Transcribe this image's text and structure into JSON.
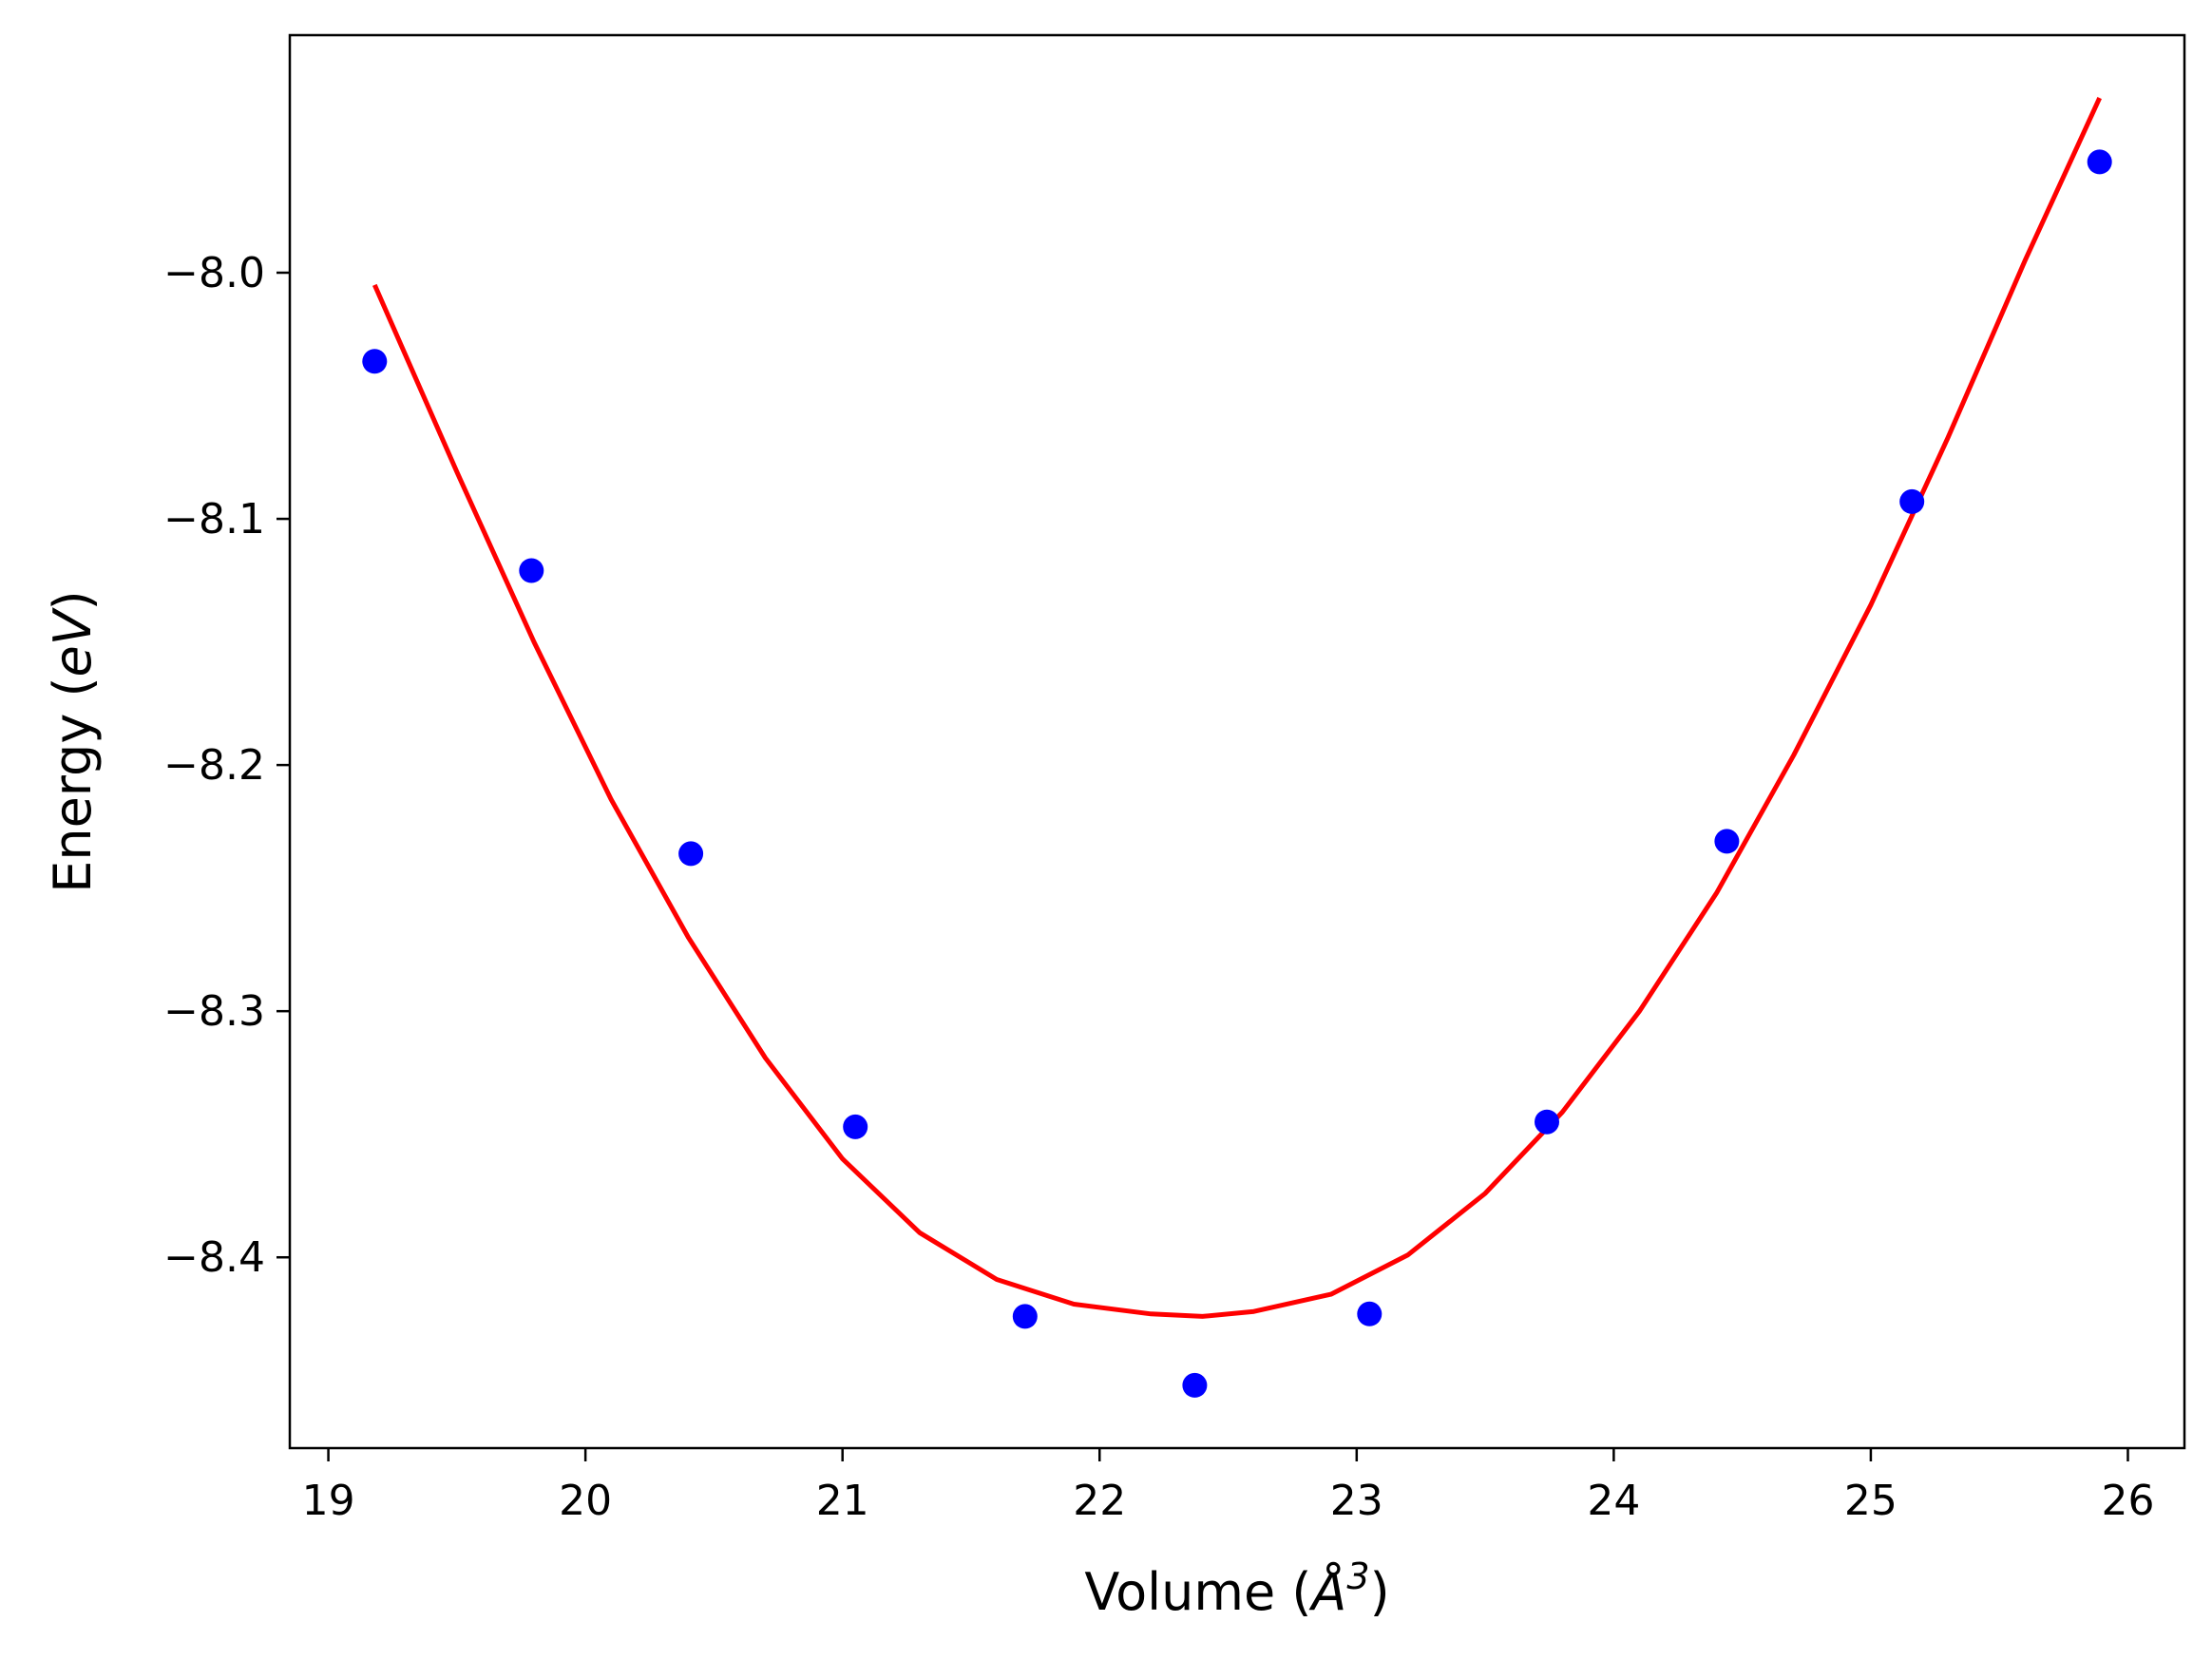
{
  "chart_data": {
    "type": "scatter",
    "xlabel": "Volume",
    "xlabel_unit_symbol": "Å",
    "xlabel_unit_exponent": "3",
    "ylabel": "Energy",
    "ylabel_unit": "eV",
    "xlim": [
      18.85,
      26.22
    ],
    "ylim": [
      -8.4775,
      -7.9035
    ],
    "x_ticks": [
      19,
      20,
      21,
      22,
      23,
      24,
      25,
      26
    ],
    "y_ticks": [
      -8.4,
      -8.3,
      -8.2,
      -8.1,
      -8.0
    ],
    "x_tick_labels": [
      "19",
      "20",
      "21",
      "22",
      "23",
      "24",
      "25",
      "26"
    ],
    "y_tick_labels": [
      "−8.4",
      "−8.3",
      "−8.2",
      "−8.1",
      "−8.0"
    ],
    "grid": false,
    "series": [
      {
        "kind": "points",
        "color": "#0000ff",
        "x": [
          19.18,
          19.79,
          20.41,
          21.05,
          21.71,
          22.37,
          23.05,
          23.74,
          24.44,
          25.16,
          25.89
        ],
        "y": [
          -8.036,
          -8.121,
          -8.236,
          -8.347,
          -8.424,
          -8.452,
          -8.423,
          -8.345,
          -8.231,
          -8.093,
          -7.955
        ]
      },
      {
        "kind": "line",
        "color": "#ff0000",
        "x": [
          19.18,
          19.5,
          19.8,
          20.1,
          20.4,
          20.7,
          21.0,
          21.3,
          21.6,
          21.9,
          22.2,
          22.4,
          22.6,
          22.9,
          23.2,
          23.5,
          23.8,
          24.1,
          24.4,
          24.7,
          25.0,
          25.3,
          25.6,
          25.89
        ],
        "y": [
          -8.005,
          -8.081,
          -8.15,
          -8.214,
          -8.27,
          -8.319,
          -8.36,
          -8.39,
          -8.409,
          -8.419,
          -8.423,
          -8.424,
          -8.422,
          -8.415,
          -8.399,
          -8.374,
          -8.341,
          -8.3,
          -8.252,
          -8.196,
          -8.135,
          -8.067,
          -7.995,
          -7.929
        ]
      }
    ]
  }
}
